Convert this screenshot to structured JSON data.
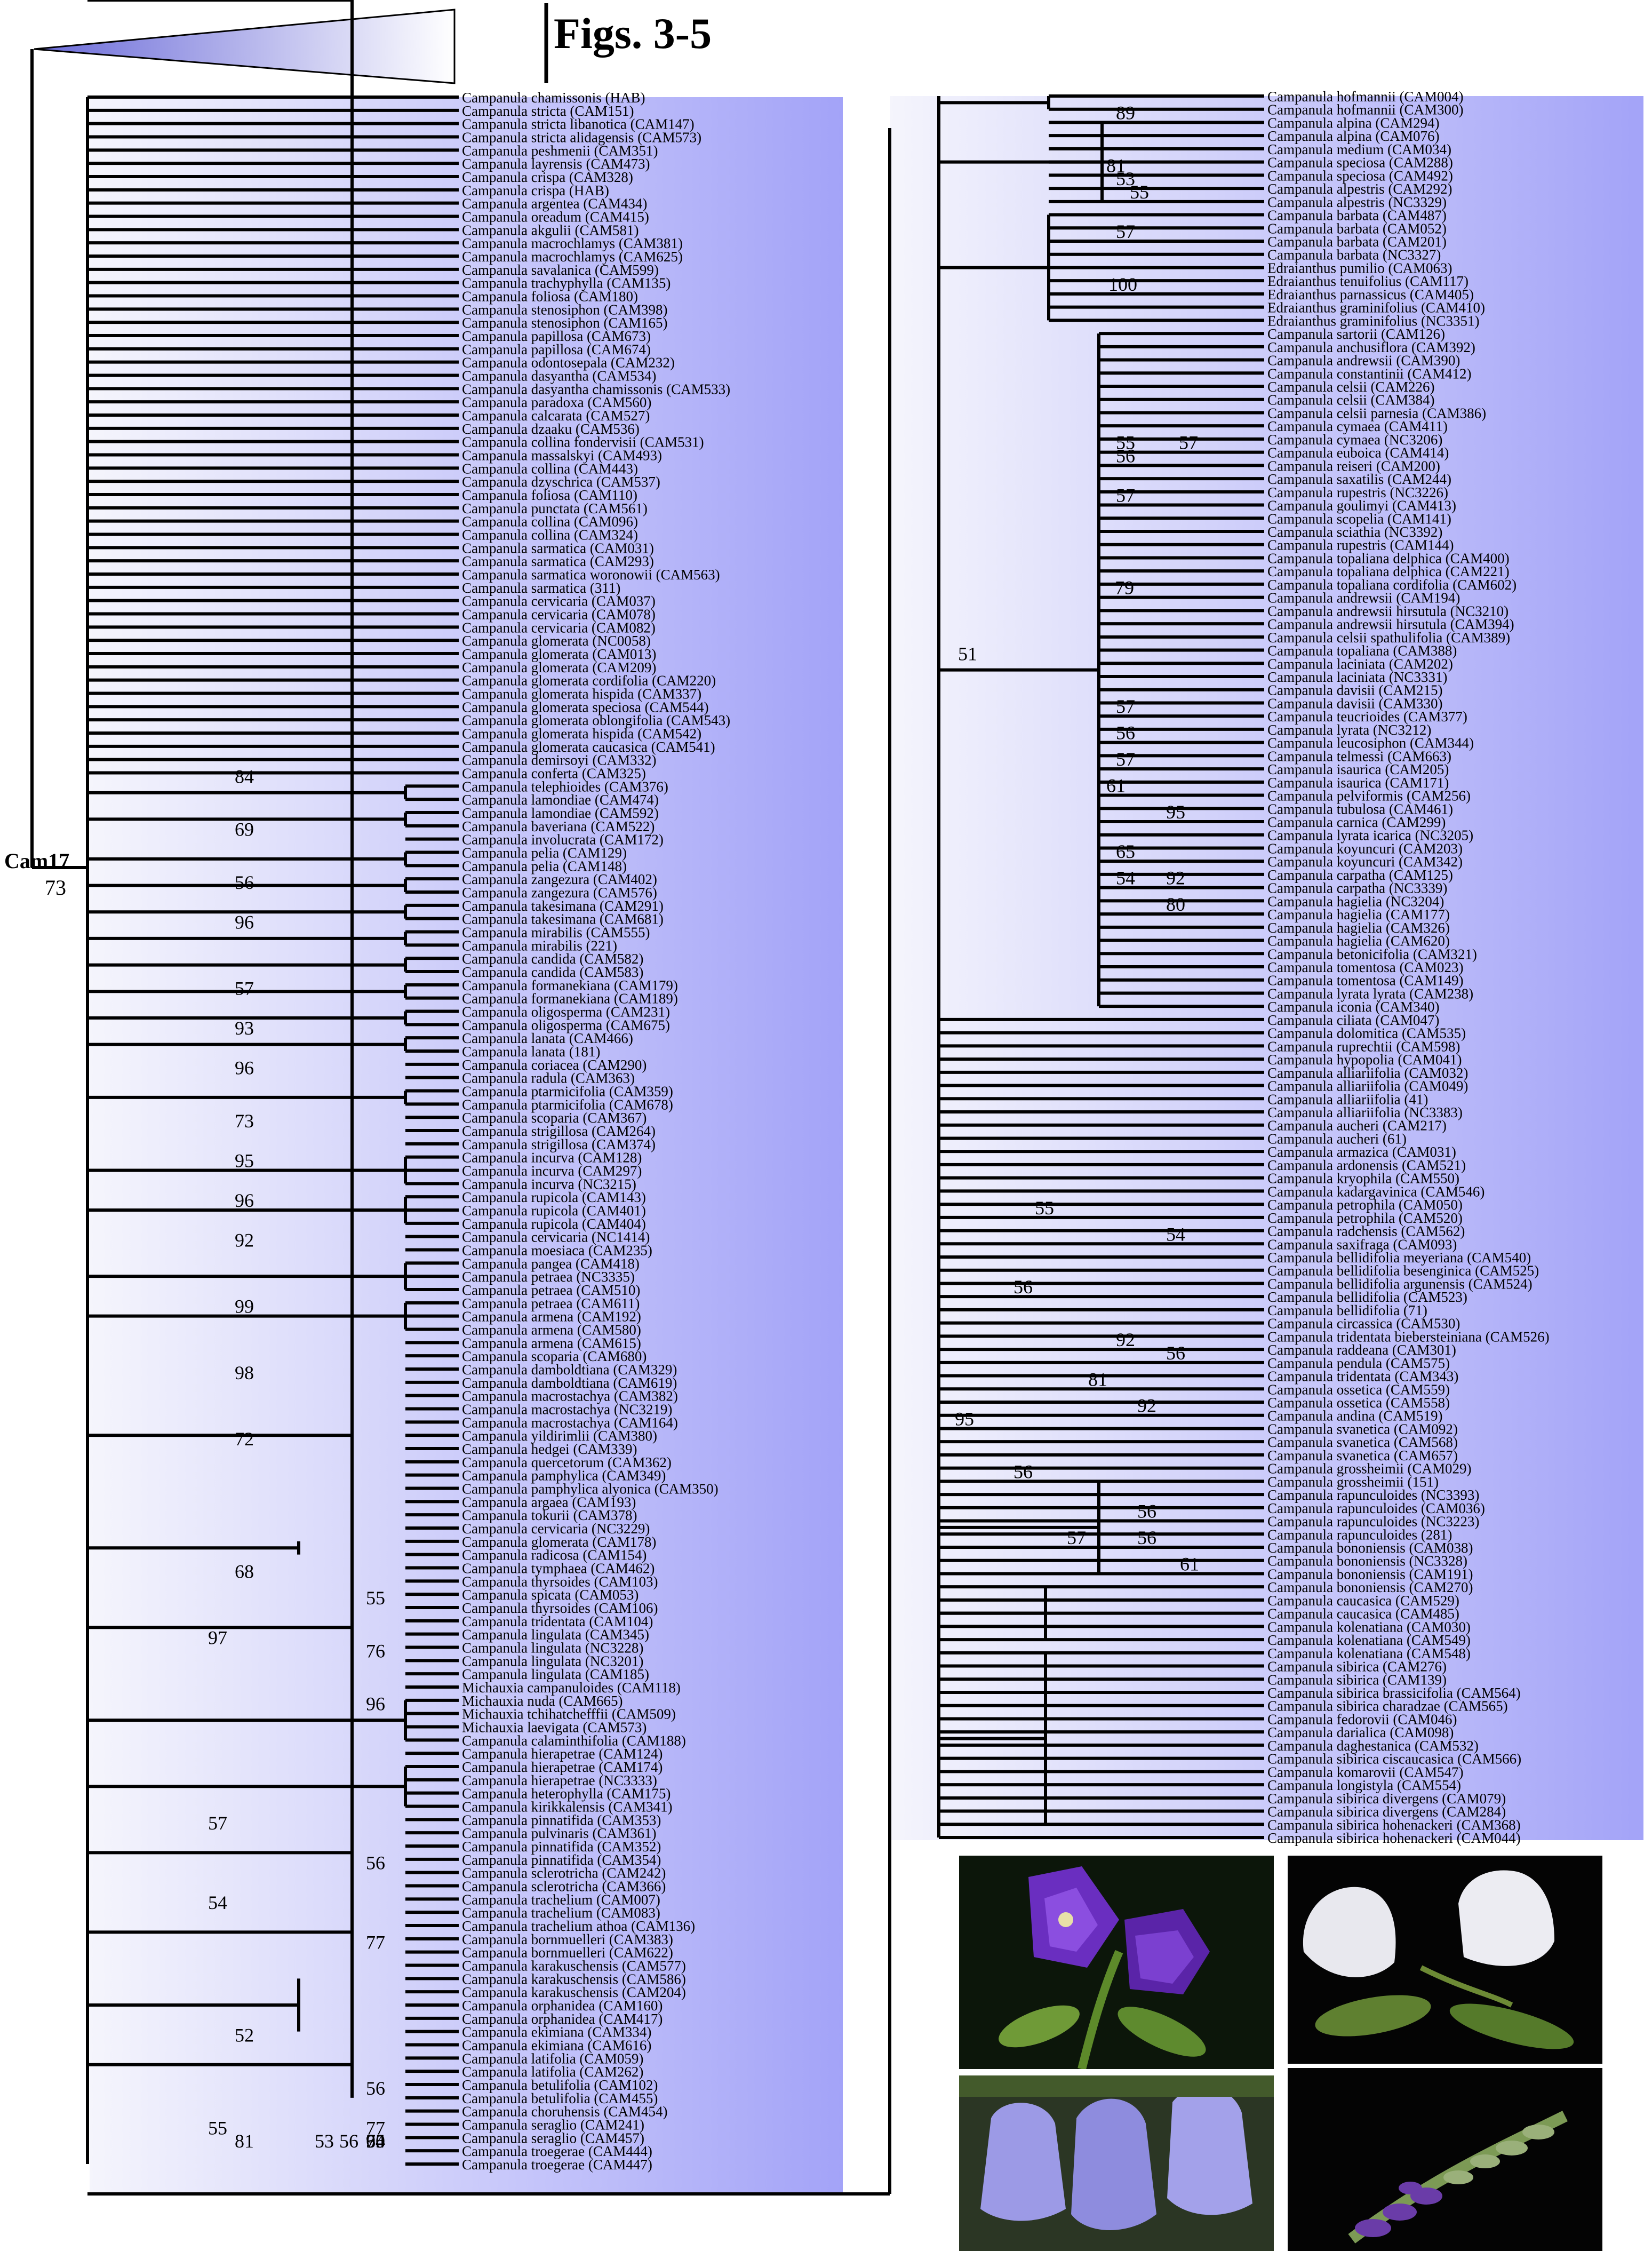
{
  "figure": {
    "title": "Figs. 3-5"
  },
  "root_node": {
    "label": "Cam17",
    "support": "73"
  },
  "left_panel": {
    "taxa": [
      "Campanula chamissonis (HAB)",
      "Campanula stricta (CAM151)",
      "Campanula stricta libanotica (CAM147)",
      "Campanula stricta alidagensis (CAM573)",
      "Campanula peshmenii (CAM351)",
      "Campanula layrensis (CAM473)",
      "Campanula crispa (CAM328)",
      "Campanula crispa (HAB)",
      "Campanula argentea (CAM434)",
      "Campanula oreadum (CAM415)",
      "Campanula akgulii (CAM581)",
      "Campanula macrochlamys (CAM381)",
      "Campanula macrochlamys (CAM625)",
      "Campanula savalanica (CAM599)",
      "Campanula trachyphylla (CAM135)",
      "Campanula foliosa (CAM180)",
      "Campanula stenosiphon (CAM398)",
      "Campanula stenosiphon (CAM165)",
      "Campanula papillosa (CAM673)",
      "Campanula papillosa (CAM674)",
      "Campanula odontosepala (CAM232)",
      "Campanula dasyantha (CAM534)",
      "Campanula dasyantha chamissonis (CAM533)",
      "Campanula paradoxa (CAM560)",
      "Campanula calcarata (CAM527)",
      "Campanula dzaaku (CAM536)",
      "Campanula collina fondervisii (CAM531)",
      "Campanula massalskyi (CAM493)",
      "Campanula collina (CAM443)",
      "Campanula dzyschrica (CAM537)",
      "Campanula foliosa (CAM110)",
      "Campanula punctata (CAM561)",
      "Campanula collina (CAM096)",
      "Campanula collina (CAM324)",
      "Campanula sarmatica (CAM031)",
      "Campanula sarmatica (CAM293)",
      "Campanula sarmatica woronowii (CAM563)",
      "Campanula sarmatica (311)",
      "Campanula cervicaria (CAM037)",
      "Campanula cervicaria (CAM078)",
      "Campanula cervicaria (CAM082)",
      "Campanula glomerata (NC0058)",
      "Campanula glomerata (CAM013)",
      "Campanula glomerata (CAM209)",
      "Campanula glomerata cordifolia (CAM220)",
      "Campanula glomerata hispida (CAM337)",
      "Campanula glomerata speciosa (CAM544)",
      "Campanula glomerata oblongifolia (CAM543)",
      "Campanula glomerata hispida (CAM542)",
      "Campanula glomerata caucasica (CAM541)",
      "Campanula demirsoyi (CAM332)",
      "Campanula conferta (CAM325)",
      "Campanula telephioides (CAM376)",
      "Campanula lamondiae (CAM474)",
      "Campanula lamondiae (CAM592)",
      "Campanula baveriana (CAM522)",
      "Campanula involucrata (CAM172)",
      "Campanula pelia (CAM129)",
      "Campanula pelia (CAM148)",
      "Campanula zangezura (CAM402)",
      "Campanula zangezura (CAM576)",
      "Campanula takesimana (CAM291)",
      "Campanula takesimana (CAM681)",
      "Campanula mirabilis (CAM555)",
      "Campanula mirabilis (221)",
      "Campanula candida (CAM582)",
      "Campanula candida (CAM583)",
      "Campanula formanekiana (CAM179)",
      "Campanula formanekiana (CAM189)",
      "Campanula oligosperma (CAM231)",
      "Campanula oligosperma (CAM675)",
      "Campanula lanata (CAM466)",
      "Campanula lanata (181)",
      "Campanula coriacea (CAM290)",
      "Campanula radula (CAM363)",
      "Campanula ptarmicifolia (CAM359)",
      "Campanula ptarmicifolia (CAM678)",
      "Campanula scoparia (CAM367)",
      "Campanula strigillosa (CAM264)",
      "Campanula strigillosa (CAM374)",
      "Campanula incurva (CAM128)",
      "Campanula incurva (CAM297)",
      "Campanula incurva (NC3215)",
      "Campanula rupicola (CAM143)",
      "Campanula rupicola (CAM401)",
      "Campanula rupicola (CAM404)",
      "Campanula cervicaria (NC1414)",
      "Campanula moesiaca (CAM235)",
      "Campanula pangea (CAM418)",
      "Campanula petraea (NC3335)",
      "Campanula petraea (CAM510)",
      "Campanula petraea (CAM611)",
      "Campanula armena (CAM192)",
      "Campanula armena (CAM580)",
      "Campanula armena (CAM615)",
      "Campanula scoparia (CAM680)",
      "Campanula damboldtiana (CAM329)",
      "Campanula damboldtiana (CAM619)",
      "Campanula macrostachya (CAM382)",
      "Campanula macrostachya (NC3219)",
      "Campanula macrostachya (CAM164)",
      "Campanula yildirimlii (CAM380)",
      "Campanula hedgei (CAM339)",
      "Campanula quercetorum (CAM362)",
      "Campanula pamphylica (CAM349)",
      "Campanula pamphylica alyonica (CAM350)",
      "Campanula argaea (CAM193)",
      "Campanula tokurii (CAM378)",
      "Campanula cervicaria (NC3229)",
      "Campanula glomerata (CAM178)",
      "Campanula radicosa (CAM154)",
      "Campanula tymphaea (CAM462)",
      "Campanula thyrsoides (CAM103)",
      "Campanula spicata (CAM053)",
      "Campanula thyrsoides (CAM106)",
      "Campanula tridentata (CAM104)",
      "Campanula lingulata (CAM345)",
      "Campanula lingulata (NC3228)",
      "Campanula lingulata (NC3201)",
      "Campanula lingulata (CAM185)",
      "Michauxia campanuloides (CAM118)",
      "Michauxia nuda (CAM665)",
      "Michauxia tchihatchefffii (CAM509)",
      "Michauxia laevigata (CAM573)",
      "Campanula calaminthifolia (CAM188)",
      "Campanula hierapetrae (CAM124)",
      "Campanula hierapetrae (CAM174)",
      "Campanula hierapetrae (NC3333)",
      "Campanula heterophylla (CAM175)",
      "Campanula kirikkalensis (CAM341)",
      "Campanula pinnatifida (CAM353)",
      "Campanula pulvinaris (CAM361)",
      "Campanula pinnatifida (CAM352)",
      "Campanula pinnatifida (CAM354)",
      "Campanula sclerotricha (CAM242)",
      "Campanula sclerotricha (CAM366)",
      "Campanula trachelium (CAM007)",
      "Campanula trachelium (CAM083)",
      "Campanula trachelium athoa (CAM136)",
      "Campanula bornmuelleri (CAM383)",
      "Campanula bornmuelleri (CAM622)",
      "Campanula karakuschensis (CAM577)",
      "Campanula karakuschensis (CAM586)",
      "Campanula karakuschensis (CAM204)",
      "Campanula orphanidea (CAM160)",
      "Campanula orphanidea (CAM417)",
      "Campanula ekimiana (CAM334)",
      "Campanula ekimiana (CAM616)",
      "Campanula latifolia (CAM059)",
      "Campanula latifolia (CAM262)",
      "Campanula betulifolia (CAM102)",
      "Campanula betulifolia (CAM455)",
      "Campanula choruhensis (CAM454)",
      "Campanula seraglio (CAM241)",
      "Campanula seraglio (CAM457)",
      "Campanula troegerae (CAM444)",
      "Campanula troegerae (CAM447)"
    ],
    "support": [
      "84",
      "69",
      "56",
      "96",
      "57",
      "93",
      "96",
      "73",
      "95",
      "96",
      "92",
      "99",
      "98",
      "72",
      "68",
      "55",
      "97",
      "76",
      "96",
      "57",
      "56",
      "54",
      "77",
      "52",
      "56",
      "77",
      "55",
      "95",
      "56",
      "53",
      "74",
      "60",
      "95",
      "81"
    ]
  },
  "right_panel": {
    "taxa": [
      "Campanula hofmannii (CAM004)",
      "Campanula hofmannii (CAM300)",
      "Campanula alpina (CAM294)",
      "Campanula alpina (CAM076)",
      "Campanula medium (CAM034)",
      "Campanula speciosa (CAM288)",
      "Campanula speciosa (CAM492)",
      "Campanula alpestris (CAM292)",
      "Campanula alpestris (NC3329)",
      "Campanula barbata (CAM487)",
      "Campanula barbata (CAM052)",
      "Campanula barbata (CAM201)",
      "Campanula barbata (NC3327)",
      "Edraianthus pumilio (CAM063)",
      "Edraianthus tenuifolius (CAM117)",
      "Edraianthus parnassicus (CAM405)",
      "Edraianthus graminifolius (CAM410)",
      "Edraianthus graminifolius (NC3351)",
      "Campanula sartorii (CAM126)",
      "Campanula anchusiflora (CAM392)",
      "Campanula andrewsii (CAM390)",
      "Campanula constantinii (CAM412)",
      "Campanula celsii (CAM226)",
      "Campanula celsii (CAM384)",
      "Campanula celsii parnesia (CAM386)",
      "Campanula cymaea (CAM411)",
      "Campanula cymaea (NC3206)",
      "Campanula euboica (CAM414)",
      "Campanula reiseri (CAM200)",
      "Campanula saxatilis (CAM244)",
      "Campanula rupestris (NC3226)",
      "Campanula goulimyi (CAM413)",
      "Campanula scopelia (CAM141)",
      "Campanula sciathia (NC3392)",
      "Campanula rupestris (CAM144)",
      "Campanula topaliana delphica (CAM400)",
      "Campanula topaliana delphica (CAM221)",
      "Campanula topaliana cordifolia (CAM602)",
      "Campanula andrewsii (CAM194)",
      "Campanula andrewsii hirsutula (NC3210)",
      "Campanula andrewsii hirsutula (CAM394)",
      "Campanula celsii spathulifolia (CAM389)",
      "Campanula topaliana (CAM388)",
      "Campanula laciniata (CAM202)",
      "Campanula laciniata (NC3331)",
      "Campanula davisii (CAM215)",
      "Campanula davisii (CAM330)",
      "Campanula teucrioides (CAM377)",
      "Campanula lyrata (NC3212)",
      "Campanula leucosiphon (CAM344)",
      "Campanula telmessi (CAM663)",
      "Campanula isaurica (CAM205)",
      "Campanula isaurica (CAM171)",
      "Campanula pelviformis (CAM256)",
      "Campanula tubulosa (CAM461)",
      "Campanula carnica (CAM299)",
      "Campanula lyrata icarica (NC3205)",
      "Campanula koyuncuri (CAM203)",
      "Campanula koyuncuri (CAM342)",
      "Campanula carpatha (CAM125)",
      "Campanula carpatha (NC3339)",
      "Campanula hagielia (NC3204)",
      "Campanula hagielia (CAM177)",
      "Campanula hagielia (CAM326)",
      "Campanula hagielia (CAM620)",
      "Campanula betonicifolia (CAM321)",
      "Campanula tomentosa (CAM023)",
      "Campanula tomentosa (CAM149)",
      "Campanula lyrata lyrata (CAM238)",
      "Campanula iconia (CAM340)",
      "Campanula ciliata (CAM047)",
      "Campanula dolomitica (CAM535)",
      "Campanula ruprechtii (CAM598)",
      "Campanula hypopolia (CAM041)",
      "Campanula alliariifolia (CAM032)",
      "Campanula alliariifolia (CAM049)",
      "Campanula alliariifolia (41)",
      "Campanula alliariifolia (NC3383)",
      "Campanula aucheri (CAM217)",
      "Campanula aucheri (61)",
      "Campanula armazica (CAM031)",
      "Campanula ardonensis (CAM521)",
      "Campanula kryophila (CAM550)",
      "Campanula kadargavinica (CAM546)",
      "Campanula petrophila (CAM050)",
      "Campanula petrophila (CAM520)",
      "Campanula radchensis (CAM562)",
      "Campanula saxifraga (CAM093)",
      "Campanula bellidifolia meyeriana (CAM540)",
      "Campanula bellidifolia besenginica (CAM525)",
      "Campanula bellidifolia argunensis (CAM524)",
      "Campanula bellidifolia (CAM523)",
      "Campanula bellidifolia (71)",
      "Campanula circassica (CAM530)",
      "Campanula tridentata biebersteiniana (CAM526)",
      "Campanula raddeana (CAM301)",
      "Campanula pendula (CAM575)",
      "Campanula tridentata (CAM343)",
      "Campanula ossetica (CAM559)",
      "Campanula ossetica (CAM558)",
      "Campanula andina (CAM519)",
      "Campanula svanetica (CAM092)",
      "Campanula svanetica (CAM568)",
      "Campanula svanetica (CAM657)",
      "Campanula grossheimii (CAM029)",
      "Campanula grossheimii (151)",
      "Campanula rapunculoides (NC3393)",
      "Campanula rapunculoides (CAM036)",
      "Campanula rapunculoides (NC3223)",
      "Campanula rapunculoides (281)",
      "Campanula bononiensis (CAM038)",
      "Campanula bononiensis (NC3328)",
      "Campanula bononiensis (CAM191)",
      "Campanula bononiensis (CAM270)",
      "Campanula caucasica (CAM529)",
      "Campanula caucasica (CAM485)",
      "Campanula kolenatiana (CAM030)",
      "Campanula kolenatiana (CAM549)",
      "Campanula kolenatiana (CAM548)",
      "Campanula sibirica (CAM276)",
      "Campanula sibirica (CAM139)",
      "Campanula sibirica brassicifolia (CAM564)",
      "Campanula sibirica charadzae (CAM565)",
      "Campanula fedorovii (CAM046)",
      "Campanula darialica (CAM098)",
      "Campanula daghestanica (CAM532)",
      "Campanula sibirica ciscaucasica (CAM566)",
      "Campanula komarovii (CAM547)",
      "Campanula longistyla (CAM554)",
      "Campanula sibirica divergens (CAM079)",
      "Campanula sibirica divergens (CAM284)",
      "Campanula sibirica hohenackeri (CAM368)",
      "Campanula sibirica hohenackeri (CAM044)"
    ],
    "support": [
      "89",
      "81",
      "53",
      "55",
      "57",
      "100",
      "55",
      "57",
      "56",
      "57",
      "79",
      "51",
      "57",
      "56",
      "57",
      "61",
      "95",
      "65",
      "54",
      "92",
      "80",
      "55",
      "54",
      "56",
      "92",
      "56",
      "81",
      "92",
      "95",
      "56",
      "56",
      "57",
      "56",
      "61"
    ]
  },
  "colors": {
    "gradient_start": "#f4f4fc",
    "gradient_end": "#a4a4f8",
    "branch": "#000000",
    "text": "#000000"
  }
}
